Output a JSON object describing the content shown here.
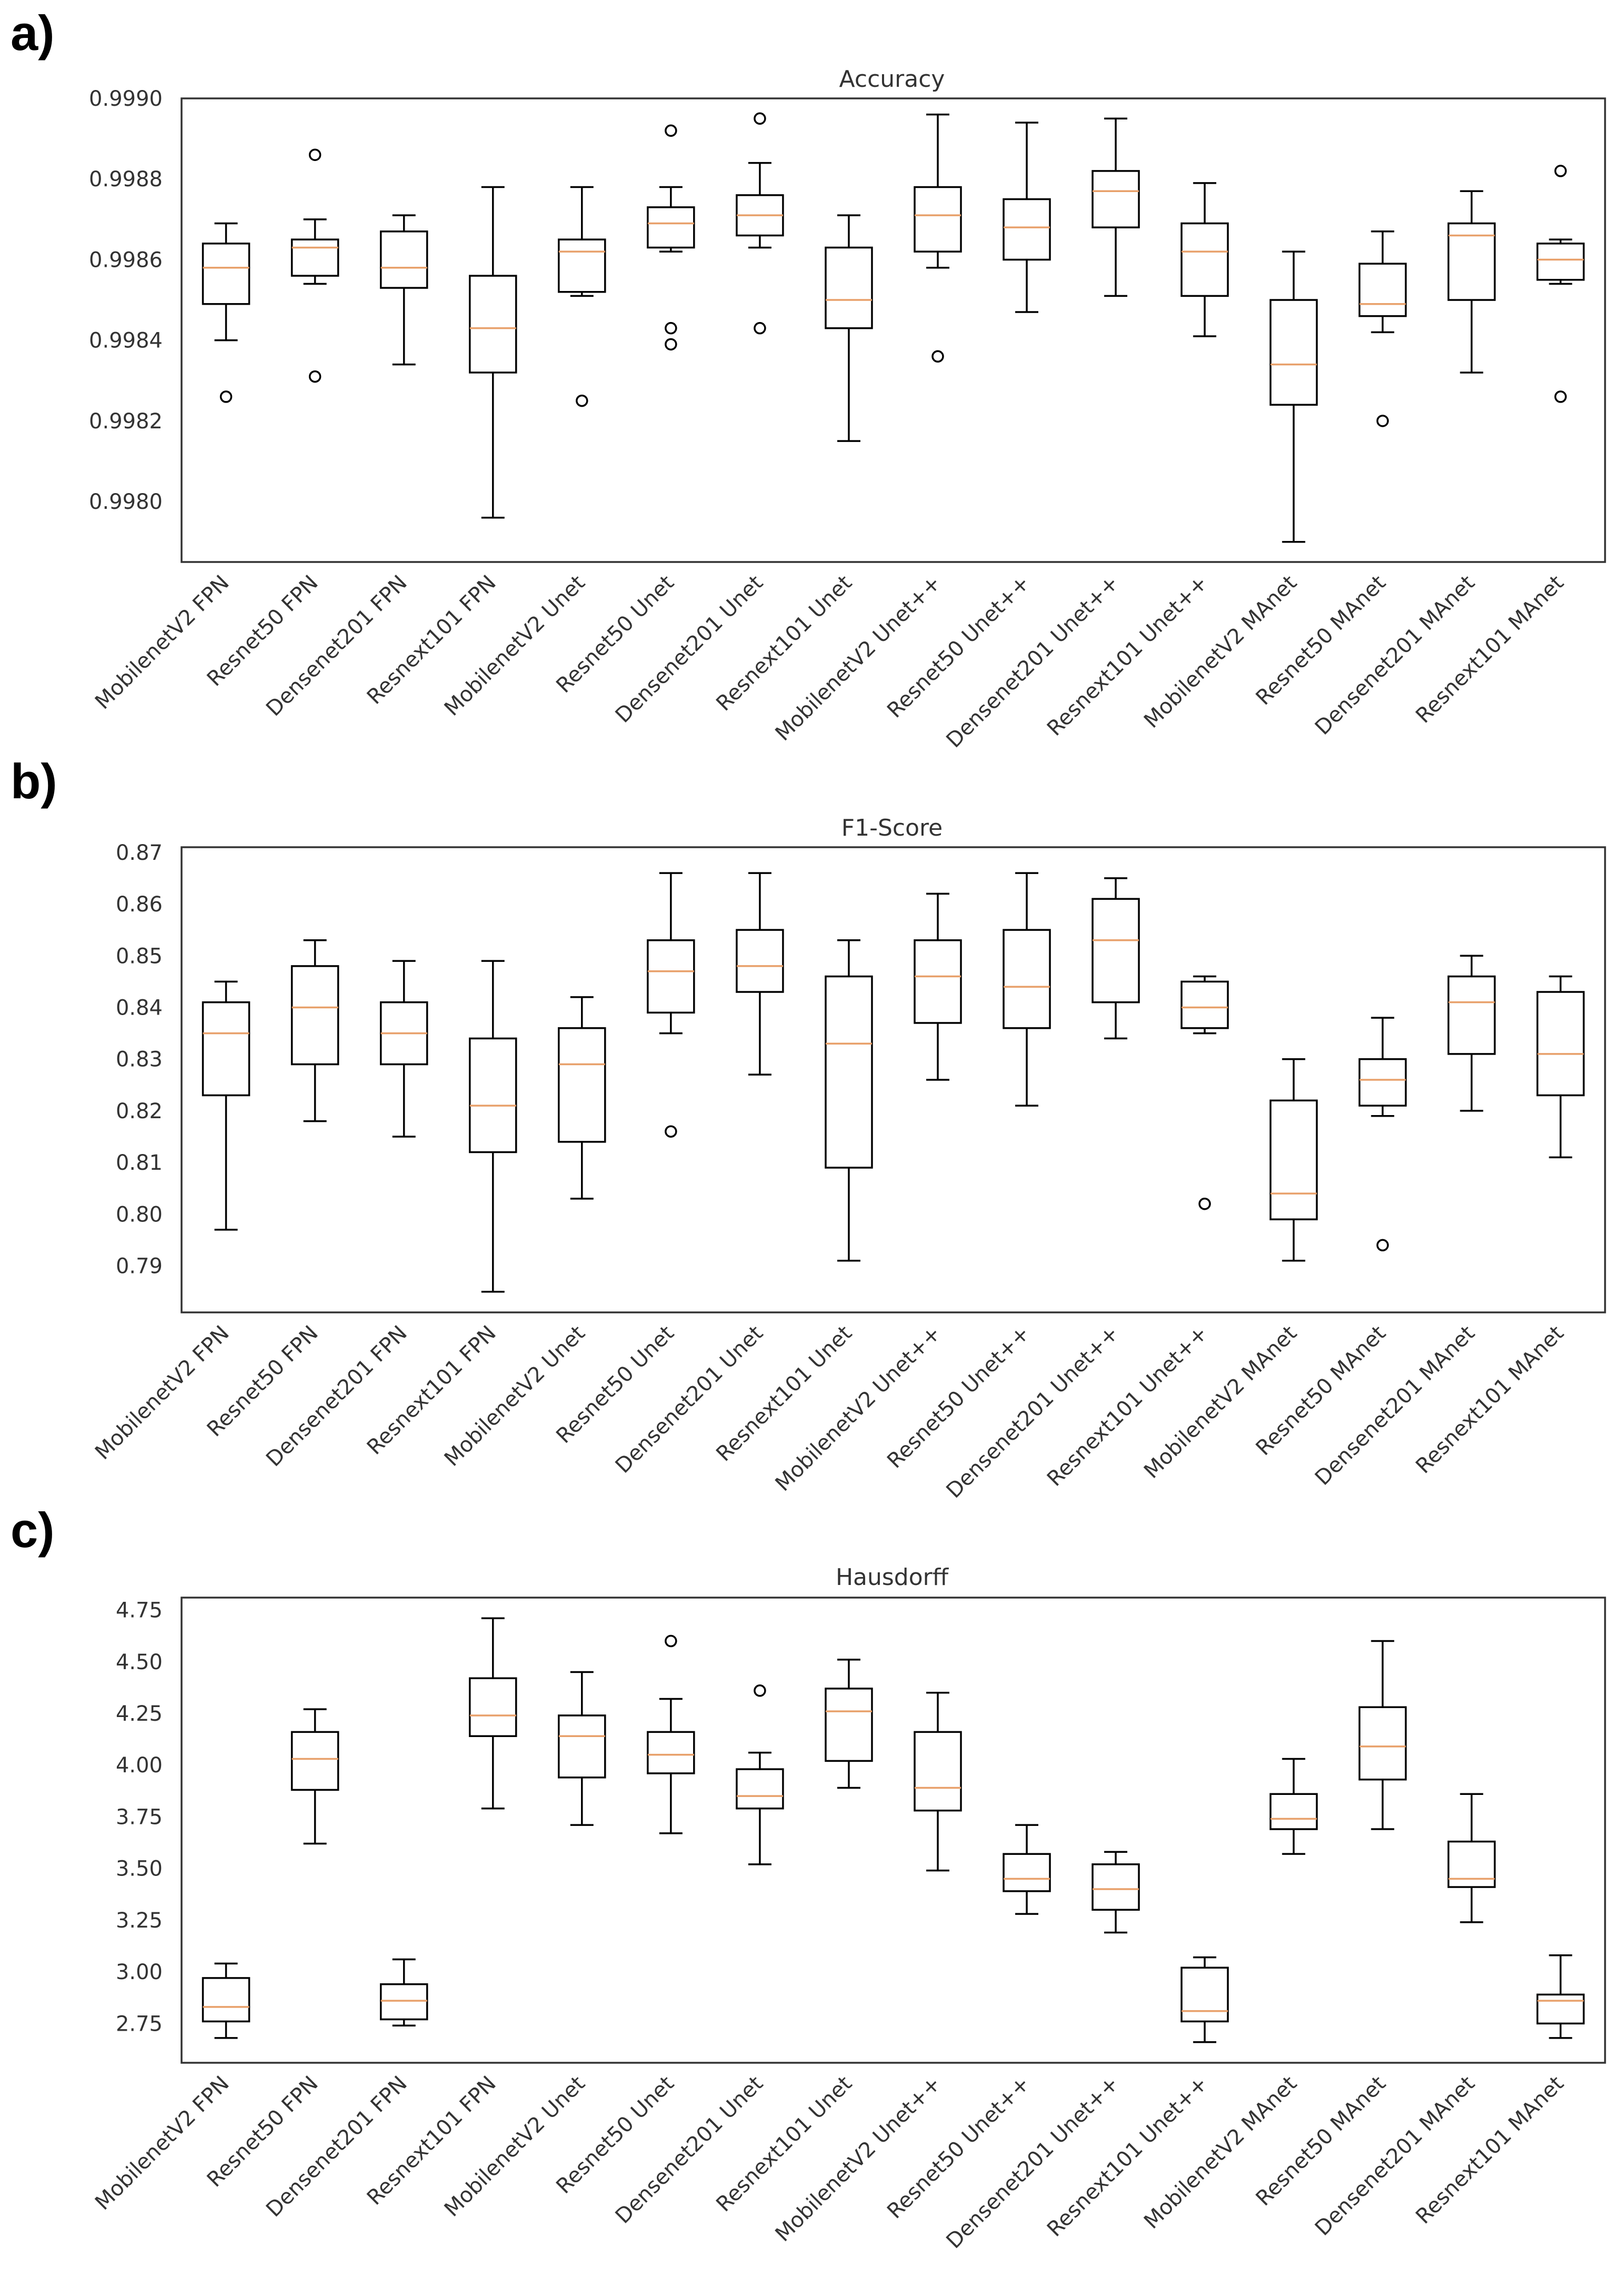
{
  "chart_data": [
    {
      "type": "box",
      "panel": "a)",
      "title": "Accuracy",
      "categories": [
        "MobilenetV2 FPN",
        "Resnet50 FPN",
        "Densenet201 FPN",
        "Resnext101 FPN",
        "MobilenetV2 Unet",
        "Resnet50 Unet",
        "Densenet201 Unet",
        "Resnext101 Unet",
        "MobilenetV2 Unet++",
        "Resnet50 Unet++",
        "Densenet201 Unet++",
        "Resnext101 Unet++",
        "MobilenetV2 MAnet",
        "Resnet50 MAnet",
        "Densenet201 MAnet",
        "Resnext101 MAnet"
      ],
      "ylim": [
        0.99785,
        0.999
      ],
      "yticks": [
        0.998,
        0.9982,
        0.9984,
        0.9986,
        0.9988,
        0.999
      ],
      "ytick_labels": [
        "0.9980",
        "0.9982",
        "0.9984",
        "0.9986",
        "0.9988",
        "0.9990"
      ],
      "boxes": [
        {
          "whislo": 0.9984,
          "q1": 0.99849,
          "med": 0.99858,
          "q3": 0.99864,
          "whishi": 0.99869,
          "fliers": [
            0.99826
          ]
        },
        {
          "whislo": 0.99854,
          "q1": 0.99856,
          "med": 0.99863,
          "q3": 0.99865,
          "whishi": 0.9987,
          "fliers": [
            0.99886,
            0.99831
          ]
        },
        {
          "whislo": 0.99834,
          "q1": 0.99853,
          "med": 0.99858,
          "q3": 0.99867,
          "whishi": 0.99871,
          "fliers": []
        },
        {
          "whislo": 0.99796,
          "q1": 0.99832,
          "med": 0.99843,
          "q3": 0.99856,
          "whishi": 0.99878,
          "fliers": []
        },
        {
          "whislo": 0.99851,
          "q1": 0.99852,
          "med": 0.99862,
          "q3": 0.99865,
          "whishi": 0.99878,
          "fliers": [
            0.99825
          ]
        },
        {
          "whislo": 0.99862,
          "q1": 0.99863,
          "med": 0.99869,
          "q3": 0.99873,
          "whishi": 0.99878,
          "fliers": [
            0.99892,
            0.99843,
            0.99839
          ]
        },
        {
          "whislo": 0.99863,
          "q1": 0.99866,
          "med": 0.99871,
          "q3": 0.99876,
          "whishi": 0.99884,
          "fliers": [
            0.99895,
            0.99843
          ]
        },
        {
          "whislo": 0.99815,
          "q1": 0.99843,
          "med": 0.9985,
          "q3": 0.99863,
          "whishi": 0.99871,
          "fliers": []
        },
        {
          "whislo": 0.99858,
          "q1": 0.99862,
          "med": 0.99871,
          "q3": 0.99878,
          "whishi": 0.99896,
          "fliers": [
            0.99836
          ]
        },
        {
          "whislo": 0.99847,
          "q1": 0.9986,
          "med": 0.99868,
          "q3": 0.99875,
          "whishi": 0.99894,
          "fliers": []
        },
        {
          "whislo": 0.99851,
          "q1": 0.99868,
          "med": 0.99877,
          "q3": 0.99882,
          "whishi": 0.99895,
          "fliers": []
        },
        {
          "whislo": 0.99841,
          "q1": 0.99851,
          "med": 0.99862,
          "q3": 0.99869,
          "whishi": 0.99879,
          "fliers": []
        },
        {
          "whislo": 0.9979,
          "q1": 0.99824,
          "med": 0.99834,
          "q3": 0.9985,
          "whishi": 0.99862,
          "fliers": []
        },
        {
          "whislo": 0.99842,
          "q1": 0.99846,
          "med": 0.99849,
          "q3": 0.99859,
          "whishi": 0.99867,
          "fliers": [
            0.9982
          ]
        },
        {
          "whislo": 0.99832,
          "q1": 0.9985,
          "med": 0.99866,
          "q3": 0.99869,
          "whishi": 0.99877,
          "fliers": []
        },
        {
          "whislo": 0.99854,
          "q1": 0.99855,
          "med": 0.9986,
          "q3": 0.99864,
          "whishi": 0.99865,
          "fliers": [
            0.99882,
            0.99826
          ]
        }
      ]
    },
    {
      "type": "box",
      "panel": "b)",
      "title": "F1-Score",
      "categories": [
        "MobilenetV2 FPN",
        "Resnet50 FPN",
        "Densenet201 FPN",
        "Resnext101 FPN",
        "MobilenetV2 Unet",
        "Resnet50 Unet",
        "Densenet201 Unet",
        "Resnext101 Unet",
        "MobilenetV2 Unet++",
        "Resnet50 Unet++",
        "Densenet201 Unet++",
        "Resnext101 Unet++",
        "MobilenetV2 MAnet",
        "Resnet50 MAnet",
        "Densenet201 MAnet",
        "Resnext101 MAnet"
      ],
      "ylim": [
        0.781,
        0.871
      ],
      "yticks": [
        0.79,
        0.8,
        0.81,
        0.82,
        0.83,
        0.84,
        0.85,
        0.86,
        0.87
      ],
      "ytick_labels": [
        "0.79",
        "0.80",
        "0.81",
        "0.82",
        "0.83",
        "0.84",
        "0.85",
        "0.86",
        "0.87"
      ],
      "boxes": [
        {
          "whislo": 0.797,
          "q1": 0.823,
          "med": 0.835,
          "q3": 0.841,
          "whishi": 0.845,
          "fliers": []
        },
        {
          "whislo": 0.818,
          "q1": 0.829,
          "med": 0.84,
          "q3": 0.848,
          "whishi": 0.853,
          "fliers": []
        },
        {
          "whislo": 0.815,
          "q1": 0.829,
          "med": 0.835,
          "q3": 0.841,
          "whishi": 0.849,
          "fliers": []
        },
        {
          "whislo": 0.785,
          "q1": 0.812,
          "med": 0.821,
          "q3": 0.834,
          "whishi": 0.849,
          "fliers": []
        },
        {
          "whislo": 0.803,
          "q1": 0.814,
          "med": 0.829,
          "q3": 0.836,
          "whishi": 0.842,
          "fliers": []
        },
        {
          "whislo": 0.835,
          "q1": 0.839,
          "med": 0.847,
          "q3": 0.853,
          "whishi": 0.866,
          "fliers": [
            0.816
          ]
        },
        {
          "whislo": 0.827,
          "q1": 0.843,
          "med": 0.848,
          "q3": 0.855,
          "whishi": 0.866,
          "fliers": []
        },
        {
          "whislo": 0.791,
          "q1": 0.809,
          "med": 0.833,
          "q3": 0.846,
          "whishi": 0.853,
          "fliers": []
        },
        {
          "whislo": 0.826,
          "q1": 0.837,
          "med": 0.846,
          "q3": 0.853,
          "whishi": 0.862,
          "fliers": []
        },
        {
          "whislo": 0.821,
          "q1": 0.836,
          "med": 0.844,
          "q3": 0.855,
          "whishi": 0.866,
          "fliers": []
        },
        {
          "whislo": 0.834,
          "q1": 0.841,
          "med": 0.853,
          "q3": 0.861,
          "whishi": 0.865,
          "fliers": []
        },
        {
          "whislo": 0.835,
          "q1": 0.836,
          "med": 0.84,
          "q3": 0.845,
          "whishi": 0.846,
          "fliers": [
            0.802
          ]
        },
        {
          "whislo": 0.791,
          "q1": 0.799,
          "med": 0.804,
          "q3": 0.822,
          "whishi": 0.83,
          "fliers": []
        },
        {
          "whislo": 0.819,
          "q1": 0.821,
          "med": 0.826,
          "q3": 0.83,
          "whishi": 0.838,
          "fliers": [
            0.794
          ]
        },
        {
          "whislo": 0.82,
          "q1": 0.831,
          "med": 0.841,
          "q3": 0.846,
          "whishi": 0.85,
          "fliers": []
        },
        {
          "whislo": 0.811,
          "q1": 0.823,
          "med": 0.831,
          "q3": 0.843,
          "whishi": 0.846,
          "fliers": []
        }
      ]
    },
    {
      "type": "box",
      "panel": "c)",
      "title": "Hausdorff",
      "categories": [
        "MobilenetV2 FPN",
        "Resnet50 FPN",
        "Densenet201 FPN",
        "Resnext101 FPN",
        "MobilenetV2 Unet",
        "Resnet50 Unet",
        "Densenet201 Unet",
        "Resnext101 Unet",
        "MobilenetV2 Unet++",
        "Resnet50 Unet++",
        "Densenet201 Unet++",
        "Resnext101 Unet++",
        "MobilenetV2 MAnet",
        "Resnet50 MAnet",
        "Densenet201 MAnet",
        "Resnext101 MAnet"
      ],
      "ylim": [
        2.56,
        4.81
      ],
      "yticks": [
        2.75,
        3.0,
        3.25,
        3.5,
        3.75,
        4.0,
        4.25,
        4.5,
        4.75
      ],
      "ytick_labels": [
        "2.75",
        "3.00",
        "3.25",
        "3.50",
        "3.75",
        "4.00",
        "4.25",
        "4.50",
        "4.75"
      ],
      "boxes": [
        {
          "whislo": 2.68,
          "q1": 2.76,
          "med": 2.83,
          "q3": 2.97,
          "whishi": 3.04,
          "fliers": []
        },
        {
          "whislo": 3.62,
          "q1": 3.88,
          "med": 4.03,
          "q3": 4.16,
          "whishi": 4.27,
          "fliers": []
        },
        {
          "whislo": 2.74,
          "q1": 2.77,
          "med": 2.86,
          "q3": 2.94,
          "whishi": 3.06,
          "fliers": []
        },
        {
          "whislo": 3.79,
          "q1": 4.14,
          "med": 4.24,
          "q3": 4.42,
          "whishi": 4.71,
          "fliers": []
        },
        {
          "whislo": 3.71,
          "q1": 3.94,
          "med": 4.14,
          "q3": 4.24,
          "whishi": 4.45,
          "fliers": []
        },
        {
          "whislo": 3.67,
          "q1": 3.96,
          "med": 4.05,
          "q3": 4.16,
          "whishi": 4.32,
          "fliers": [
            4.6
          ]
        },
        {
          "whislo": 3.52,
          "q1": 3.79,
          "med": 3.85,
          "q3": 3.98,
          "whishi": 4.06,
          "fliers": [
            4.36
          ]
        },
        {
          "whislo": 3.89,
          "q1": 4.02,
          "med": 4.26,
          "q3": 4.37,
          "whishi": 4.51,
          "fliers": []
        },
        {
          "whislo": 3.49,
          "q1": 3.78,
          "med": 3.89,
          "q3": 4.16,
          "whishi": 4.35,
          "fliers": []
        },
        {
          "whislo": 3.28,
          "q1": 3.39,
          "med": 3.45,
          "q3": 3.57,
          "whishi": 3.71,
          "fliers": []
        },
        {
          "whislo": 3.19,
          "q1": 3.3,
          "med": 3.4,
          "q3": 3.52,
          "whishi": 3.58,
          "fliers": []
        },
        {
          "whislo": 2.66,
          "q1": 2.76,
          "med": 2.81,
          "q3": 3.02,
          "whishi": 3.07,
          "fliers": []
        },
        {
          "whislo": 3.57,
          "q1": 3.69,
          "med": 3.74,
          "q3": 3.86,
          "whishi": 4.03,
          "fliers": []
        },
        {
          "whislo": 3.69,
          "q1": 3.93,
          "med": 4.09,
          "q3": 4.28,
          "whishi": 4.6,
          "fliers": []
        },
        {
          "whislo": 3.24,
          "q1": 3.41,
          "med": 3.45,
          "q3": 3.63,
          "whishi": 3.86,
          "fliers": []
        },
        {
          "whislo": 2.68,
          "q1": 2.75,
          "med": 2.86,
          "q3": 2.89,
          "whishi": 3.08,
          "fliers": []
        }
      ]
    }
  ],
  "colors": {
    "median": "#e8a06a",
    "box": "#000000",
    "frame": "#333333"
  }
}
